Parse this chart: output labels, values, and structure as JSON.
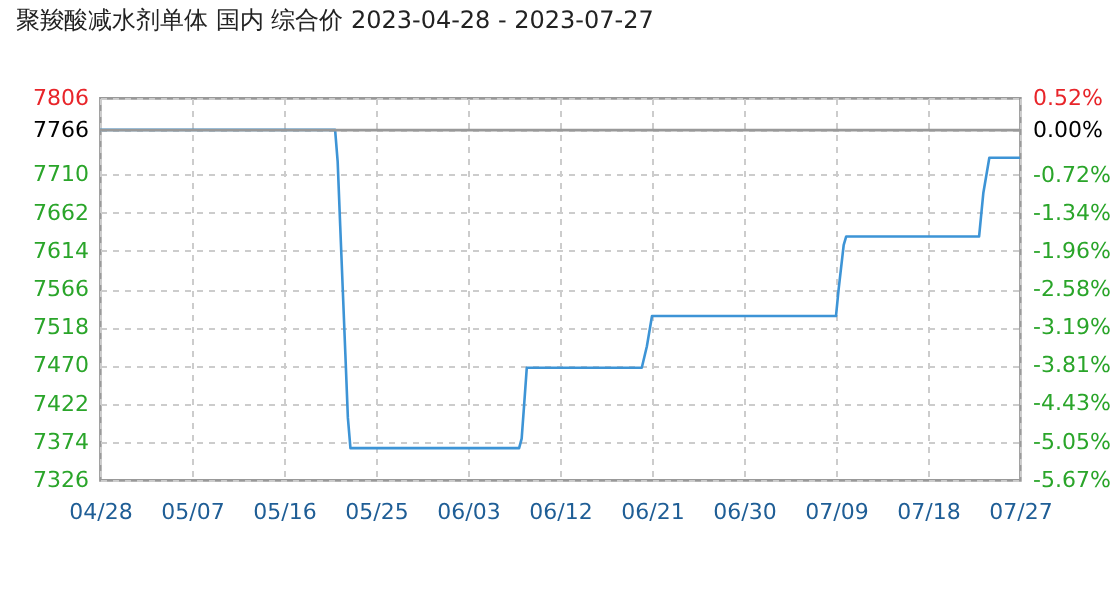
{
  "chart_data": {
    "type": "line",
    "title": "聚羧酸减水剂单体 国内 综合价 2023-04-28 - 2023-07-27",
    "x": [
      "2023-04-28",
      "2023-05-21",
      "2023-05-21T06:00",
      "2023-05-21T12:00",
      "2023-05-21T18:00",
      "2023-05-22",
      "2023-05-22T06:00",
      "2023-05-22T12:00",
      "2023-06-08",
      "2023-06-08T06:00",
      "2023-06-08T12:00",
      "2023-06-08T18:00",
      "2023-06-20",
      "2023-06-20T12:00",
      "2023-06-21",
      "2023-07-09",
      "2023-07-09T06:00",
      "2023-07-09T18:00",
      "2023-07-10",
      "2023-07-23",
      "2023-07-23T10:00",
      "2023-07-24",
      "2023-07-27"
    ],
    "series": [
      {
        "color": "#3d94d6",
        "values": [
          7766,
          7766,
          7726,
          7645,
          7565,
          7485,
          7404,
          7366,
          7366,
          7378,
          7422,
          7467,
          7467,
          7494,
          7532,
          7532,
          7565,
          7621,
          7632,
          7632,
          7687,
          7731,
          7731
        ]
      }
    ],
    "xlim": [
      "2023-04-28",
      "2023-07-27"
    ],
    "xticks": [
      {
        "value": "2023-04-28",
        "label": "04/28"
      },
      {
        "value": "2023-05-07",
        "label": "05/07"
      },
      {
        "value": "2023-05-16",
        "label": "05/16"
      },
      {
        "value": "2023-05-25",
        "label": "05/25"
      },
      {
        "value": "2023-06-03",
        "label": "06/03"
      },
      {
        "value": "2023-06-12",
        "label": "06/12"
      },
      {
        "value": "2023-06-21",
        "label": "06/21"
      },
      {
        "value": "2023-06-30",
        "label": "06/30"
      },
      {
        "value": "2023-07-09",
        "label": "07/09"
      },
      {
        "value": "2023-07-18",
        "label": "07/18"
      },
      {
        "value": "2023-07-27",
        "label": "07/27"
      }
    ],
    "ylim": [
      7326,
      7806
    ],
    "yticks": [
      7326,
      7374,
      7422,
      7470,
      7518,
      7566,
      7614,
      7662,
      7710,
      7766,
      7806
    ],
    "y2lim": [
      -5.67,
      0.52
    ],
    "y2ticks": [
      {
        "value": -5.67,
        "label": "-5.67%"
      },
      {
        "value": -5.05,
        "label": "-5.05%"
      },
      {
        "value": -4.43,
        "label": "-4.43%"
      },
      {
        "value": -3.81,
        "label": "-3.81%"
      },
      {
        "value": -3.19,
        "label": "-3.19%"
      },
      {
        "value": -2.58,
        "label": "-2.58%"
      },
      {
        "value": -1.96,
        "label": "-1.96%"
      },
      {
        "value": -1.34,
        "label": "-1.34%"
      },
      {
        "value": -0.72,
        "label": "-0.72%"
      },
      {
        "value": 0,
        "label": "0.00%"
      },
      {
        "value": 0.52,
        "label": "0.52%"
      }
    ],
    "ref_lines": [
      {
        "axis": "y2",
        "value": 0,
        "color": "#999999"
      }
    ],
    "grid": true,
    "marker": "none",
    "line_style": "solid"
  }
}
